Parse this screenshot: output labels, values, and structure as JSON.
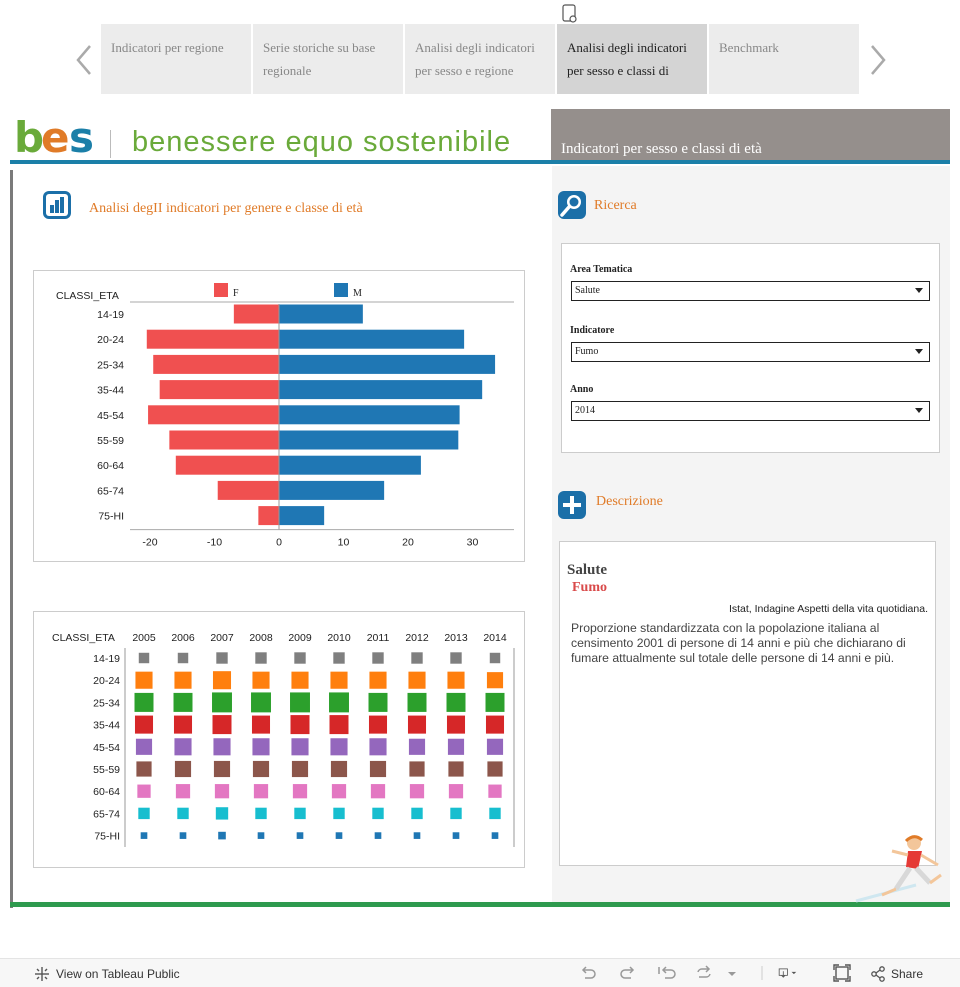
{
  "story_nav": {
    "tabs": [
      {
        "label": "Indicatori per regione",
        "active": false
      },
      {
        "label": "Serie storiche su base regionale",
        "active": false
      },
      {
        "label": "Analisi degli indicatori per sesso e regione",
        "active": false
      },
      {
        "label": "Analisi degli indicatori per sesso e classi di",
        "active": true
      },
      {
        "label": "Benchmark",
        "active": false
      }
    ]
  },
  "header": {
    "logo_bes": "bes",
    "logo_text": "benessere equo sostenibile",
    "title": "Indicatori per sesso e classi di età"
  },
  "main": {
    "title": "Analisi degII indicatori per genere e classe di età"
  },
  "search": {
    "title": "Ricerca",
    "filters": [
      {
        "label": "Area Tematica",
        "value": "Salute"
      },
      {
        "label": "Indicatore",
        "value": "Fumo"
      },
      {
        "label": "Anno",
        "value": "2014"
      }
    ]
  },
  "description": {
    "title": "Descrizione",
    "area": "Salute",
    "indicator": "Fumo",
    "source": "Istat, Indagine Aspetti della vita quotidiana.",
    "text": "Proporzione standardizzata con la popolazione italiana al censimento 2001 di persone di 14 anni e più che dichiarano di fumare attualmente sul totale delle persone di 14 anni e più."
  },
  "footer": {
    "view_public": "View on Tableau Public",
    "share": "Share"
  },
  "colors": {
    "female": "#f05050",
    "male": "#1f77b4",
    "accent_orange": "#e07b28",
    "header_blue": "#1b7fa8",
    "footer_green": "#2e9a4e"
  },
  "chart_data": [
    {
      "type": "bar",
      "orientation": "horizontal-diverging",
      "row_header": "CLASSI_ETA",
      "categories": [
        "14-19",
        "20-24",
        "25-34",
        "35-44",
        "45-54",
        "55-59",
        "60-64",
        "65-74",
        "75-HI"
      ],
      "series": [
        {
          "name": "F",
          "values": [
            -7,
            -20.5,
            -19.5,
            -18.5,
            -20.3,
            -17,
            -16,
            -9.5,
            -3.2
          ]
        },
        {
          "name": "M",
          "values": [
            13,
            28.7,
            33.5,
            31.5,
            28,
            27.8,
            22,
            16.3,
            7
          ]
        }
      ],
      "xlim": [
        -23,
        37
      ],
      "xticks": [
        -20,
        -10,
        0,
        10,
        20,
        30
      ],
      "legend": "top"
    },
    {
      "type": "heatmap",
      "row_header": "CLASSI_ETA",
      "columns": [
        "2005",
        "2006",
        "2007",
        "2008",
        "2009",
        "2010",
        "2011",
        "2012",
        "2013",
        "2014"
      ],
      "rows": [
        "14-19",
        "20-24",
        "25-34",
        "35-44",
        "45-54",
        "55-59",
        "60-64",
        "65-74",
        "75-HI"
      ],
      "row_colors": [
        "#7f7f7f",
        "#ff7f0e",
        "#2ca02c",
        "#d62728",
        "#9467bd",
        "#8c564b",
        "#e377c2",
        "#17becf",
        "#1f77b4"
      ],
      "values": [
        [
          11,
          11,
          12,
          12,
          12,
          12,
          12,
          12,
          12,
          11
        ],
        [
          18,
          18,
          19,
          18,
          18,
          18,
          18,
          18,
          18,
          17
        ],
        [
          20,
          20,
          21,
          21,
          21,
          21,
          20,
          20,
          20,
          20
        ],
        [
          19,
          19,
          20,
          19,
          20,
          20,
          19,
          19,
          19,
          19
        ],
        [
          17,
          18,
          18,
          18,
          18,
          18,
          18,
          17,
          17,
          17
        ],
        [
          16,
          17,
          17,
          17,
          17,
          17,
          17,
          16,
          16,
          16
        ],
        [
          14,
          15,
          15,
          15,
          15,
          15,
          15,
          15,
          15,
          14
        ],
        [
          12,
          12,
          13,
          12,
          12,
          12,
          12,
          12,
          12,
          12
        ],
        [
          7,
          7,
          8,
          7,
          7,
          7,
          7,
          7,
          7,
          7
        ]
      ],
      "value_encoding": "square-size"
    }
  ]
}
